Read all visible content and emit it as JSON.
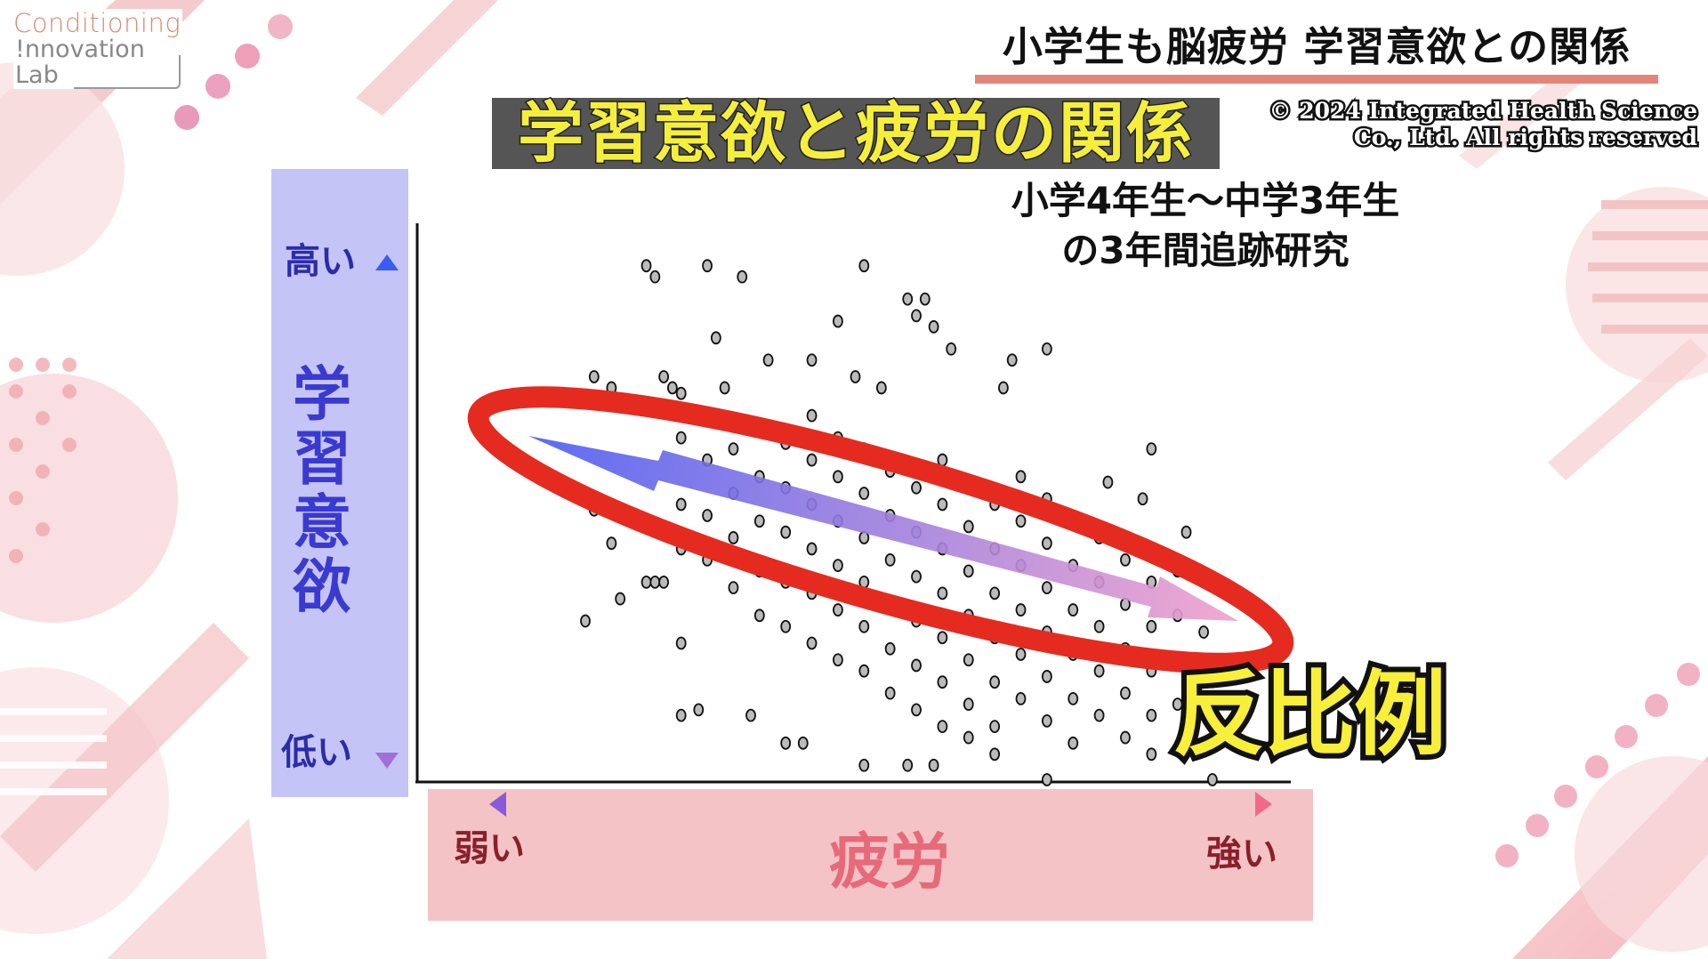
{
  "logo": {
    "line1": "Conditioning",
    "line2": "!nnovation",
    "line3": "Lab"
  },
  "header": {
    "top_title": "小学生も脳疲労 学習意欲との関係",
    "slide_title": "学習意欲と疲労の関係"
  },
  "copyright": {
    "line1": "© 2024 Integrated Health Science",
    "line2": "Co., Ltd. All rights reserved"
  },
  "subtitle": {
    "line1": "小学4年生～中学3年生",
    "line2": "の3年間追跡研究"
  },
  "annotation": {
    "label": "反比例"
  },
  "colors": {
    "ring": "#e52b20",
    "y_panel": "#c4c4f6",
    "x_panel": "#f4c3c6",
    "title_yellow": "#f5ef3c",
    "arrow_start": "#4a5cf0",
    "arrow_end": "#f0a0cc"
  },
  "chart_data": {
    "type": "scatter",
    "ylabel": "学習意欲",
    "ylabel_high": "高い",
    "ylabel_low": "低い",
    "xlabel": "疲労",
    "xlabel_low": "弱い",
    "xlabel_high": "強い",
    "xlim": [
      0,
      100
    ],
    "ylim": [
      0,
      100
    ],
    "grid": false,
    "trend": "negative",
    "points": [
      [
        26,
        93
      ],
      [
        27,
        91
      ],
      [
        33,
        93
      ],
      [
        37,
        91
      ],
      [
        51,
        93
      ],
      [
        48,
        83
      ],
      [
        56,
        87
      ],
      [
        58,
        87
      ],
      [
        57,
        84
      ],
      [
        59,
        82
      ],
      [
        34,
        80
      ],
      [
        61,
        78
      ],
      [
        72,
        78
      ],
      [
        68,
        76
      ],
      [
        45,
        76
      ],
      [
        40,
        76
      ],
      [
        20,
        73
      ],
      [
        22,
        71
      ],
      [
        28,
        73
      ],
      [
        29,
        71
      ],
      [
        35,
        71
      ],
      [
        50,
        73
      ],
      [
        53,
        71
      ],
      [
        67,
        71
      ],
      [
        84,
        60
      ],
      [
        79,
        54
      ],
      [
        83,
        51
      ],
      [
        88,
        45
      ],
      [
        87,
        38
      ],
      [
        90,
        27
      ],
      [
        19,
        29
      ],
      [
        23,
        33
      ],
      [
        30,
        25
      ],
      [
        30,
        12
      ],
      [
        32,
        13
      ],
      [
        38,
        12
      ],
      [
        42,
        7
      ],
      [
        44,
        7
      ],
      [
        51,
        3
      ],
      [
        56,
        3
      ],
      [
        59,
        3
      ],
      [
        72,
        0.4
      ],
      [
        91,
        0.4
      ],
      [
        20,
        49
      ],
      [
        22,
        43
      ],
      [
        26,
        36
      ],
      [
        27,
        36
      ],
      [
        28,
        36
      ],
      [
        30,
        62
      ],
      [
        30,
        50
      ],
      [
        30,
        42
      ],
      [
        30,
        70
      ],
      [
        33,
        58
      ],
      [
        33,
        48
      ],
      [
        33,
        66
      ],
      [
        33,
        40
      ],
      [
        36,
        60
      ],
      [
        36,
        52
      ],
      [
        36,
        44
      ],
      [
        36,
        35
      ],
      [
        39,
        64
      ],
      [
        39,
        55
      ],
      [
        39,
        47
      ],
      [
        39,
        38
      ],
      [
        39,
        30
      ],
      [
        42,
        61
      ],
      [
        42,
        53
      ],
      [
        42,
        45
      ],
      [
        42,
        36
      ],
      [
        42,
        28
      ],
      [
        45,
        58
      ],
      [
        45,
        50
      ],
      [
        45,
        42
      ],
      [
        45,
        34
      ],
      [
        45,
        25
      ],
      [
        45,
        66
      ],
      [
        48,
        55
      ],
      [
        48,
        47
      ],
      [
        48,
        39
      ],
      [
        48,
        31
      ],
      [
        48,
        22
      ],
      [
        48,
        62
      ],
      [
        51,
        60
      ],
      [
        51,
        52
      ],
      [
        51,
        44
      ],
      [
        51,
        36
      ],
      [
        51,
        28
      ],
      [
        51,
        20
      ],
      [
        54,
        56
      ],
      [
        54,
        48
      ],
      [
        54,
        40
      ],
      [
        54,
        32
      ],
      [
        54,
        24
      ],
      [
        54,
        16
      ],
      [
        57,
        53
      ],
      [
        57,
        45
      ],
      [
        57,
        37
      ],
      [
        57,
        29
      ],
      [
        57,
        21
      ],
      [
        57,
        13
      ],
      [
        60,
        58
      ],
      [
        60,
        50
      ],
      [
        60,
        42
      ],
      [
        60,
        34
      ],
      [
        60,
        26
      ],
      [
        60,
        18
      ],
      [
        60,
        10
      ],
      [
        63,
        54
      ],
      [
        63,
        46
      ],
      [
        63,
        38
      ],
      [
        63,
        30
      ],
      [
        63,
        22
      ],
      [
        63,
        14
      ],
      [
        63,
        8
      ],
      [
        66,
        50
      ],
      [
        66,
        42
      ],
      [
        66,
        34
      ],
      [
        66,
        26
      ],
      [
        66,
        18
      ],
      [
        66,
        10
      ],
      [
        66,
        5
      ],
      [
        69,
        55
      ],
      [
        69,
        47
      ],
      [
        69,
        39
      ],
      [
        69,
        31
      ],
      [
        69,
        23
      ],
      [
        69,
        15
      ],
      [
        72,
        51
      ],
      [
        72,
        43
      ],
      [
        72,
        35
      ],
      [
        72,
        27
      ],
      [
        72,
        19
      ],
      [
        72,
        11
      ],
      [
        75,
        47
      ],
      [
        75,
        39
      ],
      [
        75,
        31
      ],
      [
        75,
        23
      ],
      [
        75,
        15
      ],
      [
        75,
        7
      ],
      [
        78,
        44
      ],
      [
        78,
        36
      ],
      [
        78,
        28
      ],
      [
        78,
        20
      ],
      [
        78,
        12
      ],
      [
        81,
        40
      ],
      [
        81,
        32
      ],
      [
        81,
        24
      ],
      [
        81,
        16
      ],
      [
        81,
        8
      ],
      [
        84,
        36
      ],
      [
        84,
        28
      ],
      [
        84,
        20
      ],
      [
        84,
        12
      ],
      [
        84,
        5
      ],
      [
        87,
        30
      ],
      [
        87,
        22
      ],
      [
        87,
        14
      ],
      [
        87,
        6
      ]
    ]
  }
}
